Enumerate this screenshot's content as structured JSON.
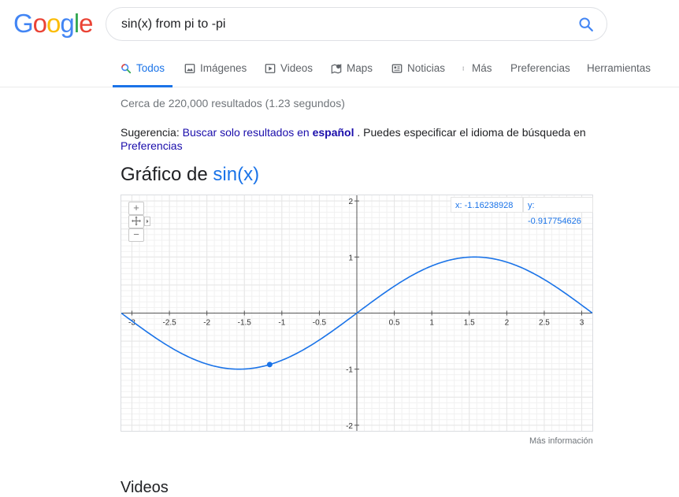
{
  "logo": {
    "letters": [
      "G",
      "o",
      "o",
      "g",
      "l",
      "e"
    ],
    "colors": [
      "#4285F4",
      "#EA4335",
      "#FBBC05",
      "#4285F4",
      "#34A853",
      "#EA4335"
    ]
  },
  "search": {
    "query": "sin(x) from pi to -pi",
    "icon": "search-icon"
  },
  "tabs": [
    {
      "label": "Todos",
      "icon": "search-icon",
      "active": true
    },
    {
      "label": "Imágenes",
      "icon": "image-icon"
    },
    {
      "label": "Videos",
      "icon": "play-icon"
    },
    {
      "label": "Maps",
      "icon": "map-pin-icon"
    },
    {
      "label": "Noticias",
      "icon": "news-icon"
    },
    {
      "label": "Más",
      "icon": "more-vert-icon"
    },
    {
      "label": "Preferencias"
    },
    {
      "label": "Herramientas"
    }
  ],
  "result_stats": "Cerca de 220,000 resultados (1.23 segundos)",
  "suggestion": {
    "prefix": "Sugerencia:",
    "link_text": "Buscar solo resultados en",
    "link_bold": "español",
    "middle": ". Puedes especificar el idioma de búsqueda en",
    "prefs_link": "Preferencias"
  },
  "graph": {
    "title_prefix": "Gráfico de",
    "function": "sin(x)",
    "x_readout": "x: -1.16238928",
    "y_readout": "y: -0.917754626",
    "more_info": "Más información",
    "colors": {
      "curve": "#1a73e8",
      "axis": "#555555",
      "grid": "#e6e6e6"
    }
  },
  "chart_data": {
    "type": "line",
    "function": "sin(x)",
    "x_range": [
      -3.14159,
      3.14159
    ],
    "xlim": [
      -3.14159,
      3.14159
    ],
    "ylim": [
      -2.1,
      2.1
    ],
    "x_ticks": [
      -3,
      -2.5,
      -2,
      -1.5,
      -1,
      -0.5,
      0.5,
      1,
      1.5,
      2,
      2.5,
      3
    ],
    "y_ticks": [
      -2,
      -1,
      1,
      2
    ],
    "highlight_point": {
      "x": -1.16238928,
      "y": -0.917754626
    },
    "grid": true
  },
  "videos_heading": "Videos"
}
